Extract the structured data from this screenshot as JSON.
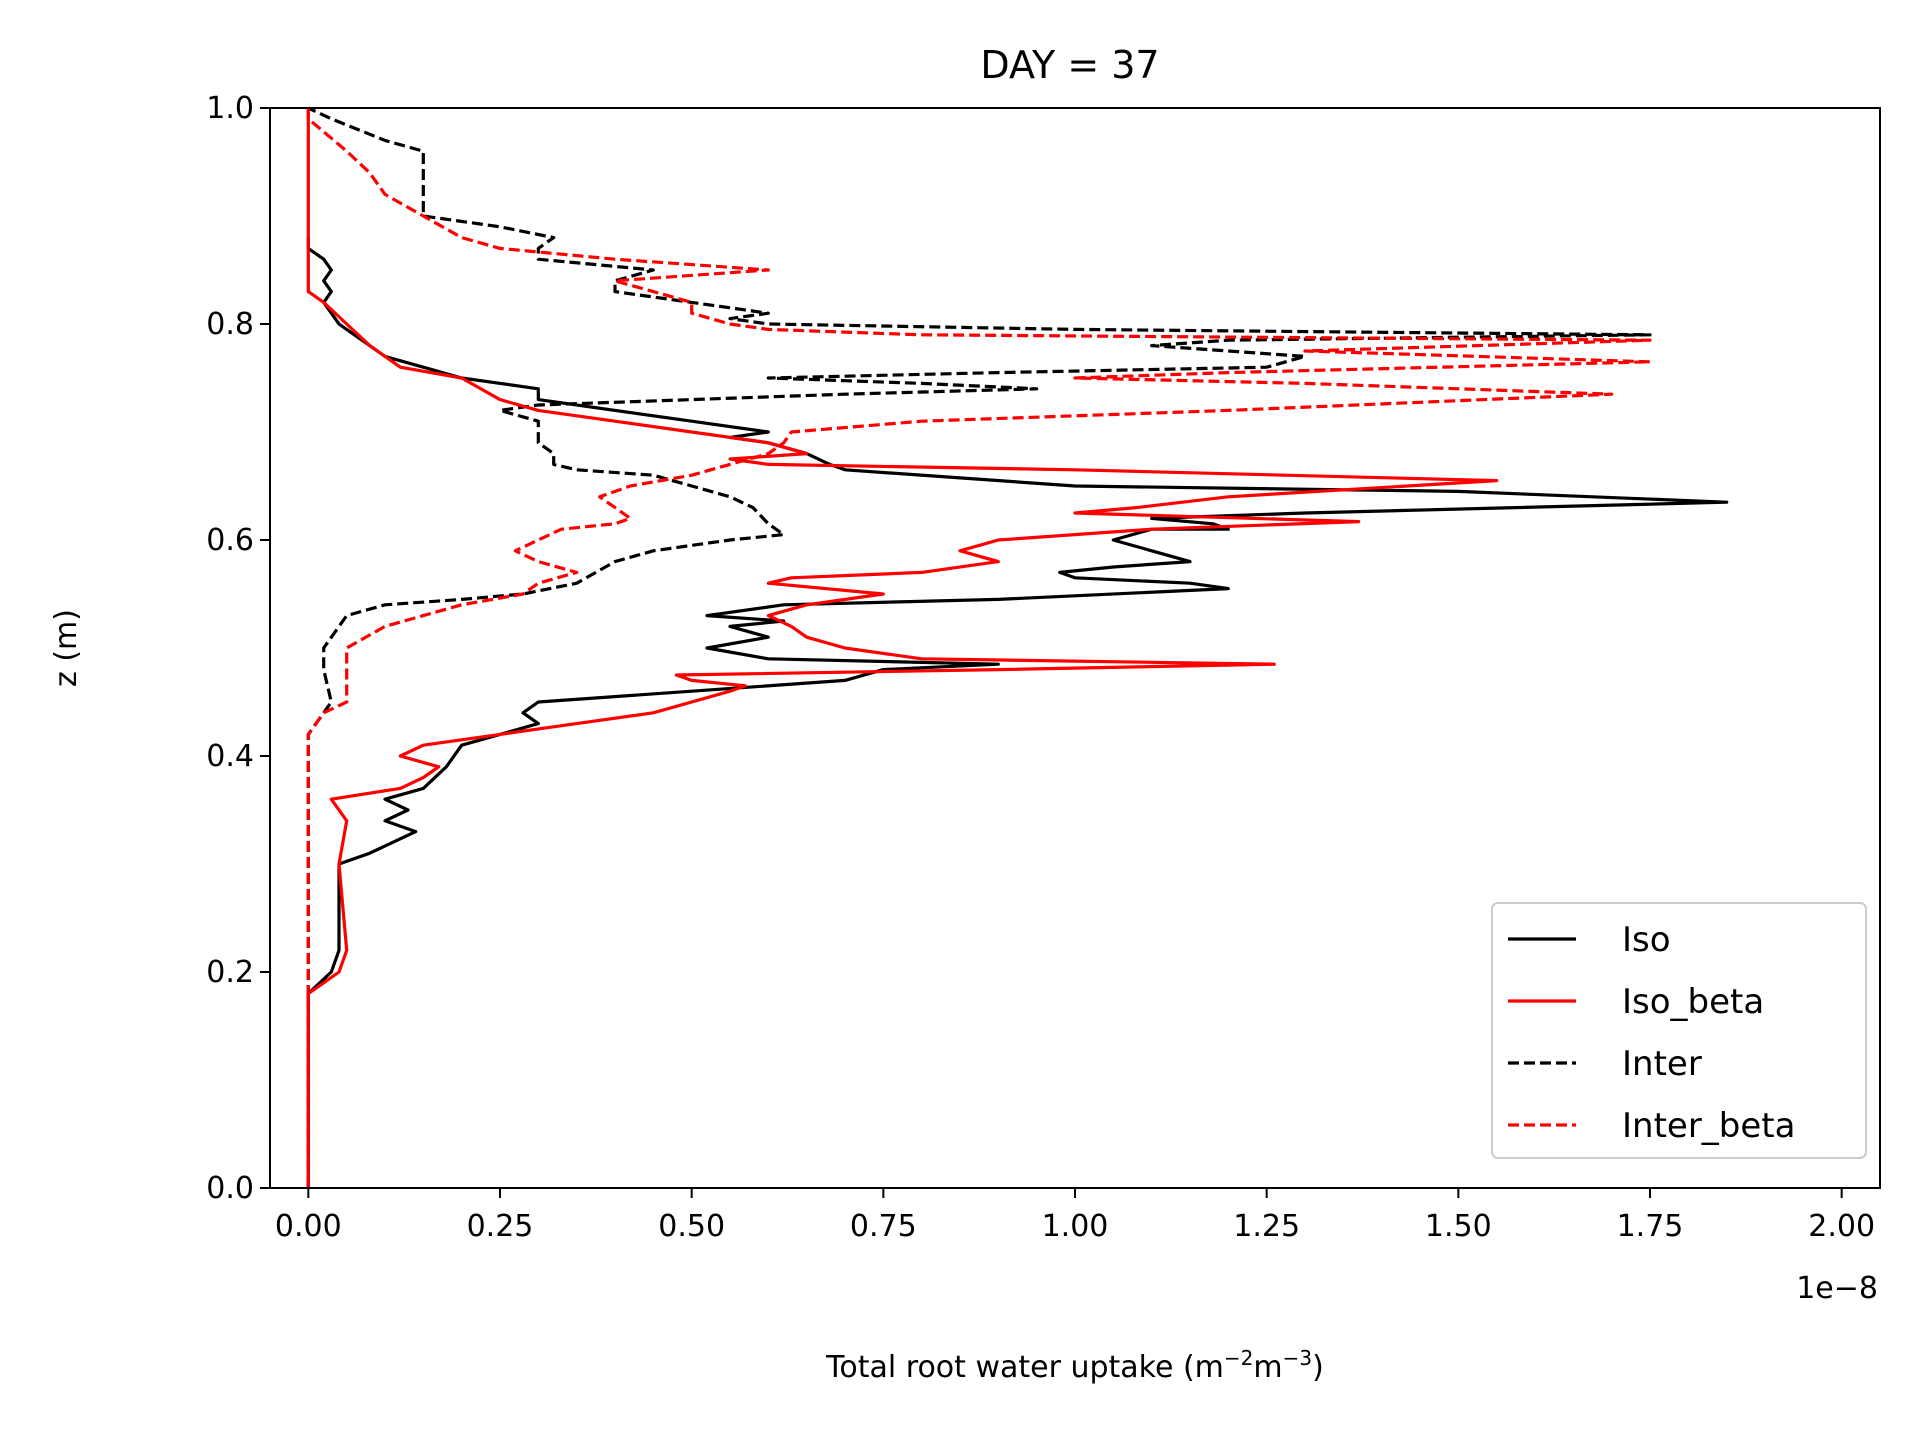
{
  "chart_data": {
    "type": "line",
    "title": "DAY = 37",
    "xlabel": "Total root water uptake (m",
    "xlabel_sup1": "−2",
    "xlabel_mid": "m",
    "xlabel_sup2": "−3",
    "xlabel_end": ")",
    "ylabel": "z (m)",
    "x_offset_text": "1e−8",
    "xlim": [
      -0.05,
      2.05
    ],
    "ylim": [
      0,
      1.0
    ],
    "xticks": [
      0.0,
      0.25,
      0.5,
      0.75,
      1.0,
      1.25,
      1.5,
      1.75,
      2.0
    ],
    "xtick_labels": [
      "0.00",
      "0.25",
      "0.50",
      "0.75",
      "1.00",
      "1.25",
      "1.50",
      "1.75",
      "2.00"
    ],
    "yticks": [
      0.0,
      0.2,
      0.4,
      0.6,
      0.8,
      1.0
    ],
    "ytick_labels": [
      "0.0",
      "0.2",
      "0.4",
      "0.6",
      "0.8",
      "1.0"
    ],
    "legend_position": "lower-right",
    "grid": false,
    "series": [
      {
        "name": "Iso",
        "color": "#000000",
        "dash": "solid",
        "points": [
          [
            0,
            0.0
          ],
          [
            0,
            0.18
          ],
          [
            0.03,
            0.2
          ],
          [
            0.04,
            0.22
          ],
          [
            0.04,
            0.3
          ],
          [
            0.08,
            0.31
          ],
          [
            0.14,
            0.33
          ],
          [
            0.1,
            0.34
          ],
          [
            0.13,
            0.35
          ],
          [
            0.1,
            0.36
          ],
          [
            0.15,
            0.37
          ],
          [
            0.18,
            0.39
          ],
          [
            0.2,
            0.41
          ],
          [
            0.25,
            0.42
          ],
          [
            0.3,
            0.43
          ],
          [
            0.28,
            0.44
          ],
          [
            0.3,
            0.45
          ],
          [
            0.5,
            0.46
          ],
          [
            0.7,
            0.47
          ],
          [
            0.75,
            0.48
          ],
          [
            0.9,
            0.485
          ],
          [
            0.6,
            0.49
          ],
          [
            0.52,
            0.5
          ],
          [
            0.6,
            0.51
          ],
          [
            0.55,
            0.52
          ],
          [
            0.62,
            0.525
          ],
          [
            0.52,
            0.53
          ],
          [
            0.62,
            0.54
          ],
          [
            0.9,
            0.545
          ],
          [
            1.2,
            0.555
          ],
          [
            1.15,
            0.56
          ],
          [
            1.0,
            0.565
          ],
          [
            0.98,
            0.57
          ],
          [
            1.05,
            0.575
          ],
          [
            1.15,
            0.58
          ],
          [
            1.1,
            0.59
          ],
          [
            1.05,
            0.6
          ],
          [
            1.1,
            0.61
          ],
          [
            1.2,
            0.61
          ],
          [
            1.18,
            0.615
          ],
          [
            1.1,
            0.62
          ],
          [
            1.3,
            0.625
          ],
          [
            1.85,
            0.635
          ],
          [
            1.5,
            0.645
          ],
          [
            1.0,
            0.65
          ],
          [
            0.7,
            0.665
          ],
          [
            0.68,
            0.67
          ],
          [
            0.65,
            0.68
          ],
          [
            0.6,
            0.69
          ],
          [
            0.55,
            0.695
          ],
          [
            0.6,
            0.7
          ],
          [
            0.5,
            0.71
          ],
          [
            0.3,
            0.73
          ],
          [
            0.3,
            0.74
          ],
          [
            0.2,
            0.75
          ],
          [
            0.15,
            0.76
          ],
          [
            0.1,
            0.77
          ],
          [
            0.08,
            0.78
          ],
          [
            0.06,
            0.79
          ],
          [
            0.04,
            0.8
          ],
          [
            0.02,
            0.82
          ],
          [
            0.03,
            0.83
          ],
          [
            0.02,
            0.84
          ],
          [
            0.03,
            0.85
          ],
          [
            0.02,
            0.86
          ],
          [
            0.0,
            0.87
          ],
          [
            0,
            0.88
          ]
        ]
      },
      {
        "name": "Iso_beta",
        "color": "#ff0000",
        "dash": "solid",
        "points": [
          [
            0,
            0.0
          ],
          [
            0,
            0.18
          ],
          [
            0.02,
            0.19
          ],
          [
            0.04,
            0.2
          ],
          [
            0.05,
            0.22
          ],
          [
            0.04,
            0.3
          ],
          [
            0.05,
            0.34
          ],
          [
            0.04,
            0.35
          ],
          [
            0.03,
            0.36
          ],
          [
            0.12,
            0.37
          ],
          [
            0.15,
            0.38
          ],
          [
            0.17,
            0.39
          ],
          [
            0.12,
            0.4
          ],
          [
            0.15,
            0.41
          ],
          [
            0.25,
            0.42
          ],
          [
            0.35,
            0.43
          ],
          [
            0.45,
            0.44
          ],
          [
            0.5,
            0.45
          ],
          [
            0.55,
            0.46
          ],
          [
            0.57,
            0.465
          ],
          [
            0.5,
            0.47
          ],
          [
            0.48,
            0.475
          ],
          [
            0.9,
            0.48
          ],
          [
            1.26,
            0.485
          ],
          [
            0.8,
            0.49
          ],
          [
            0.7,
            0.5
          ],
          [
            0.65,
            0.51
          ],
          [
            0.63,
            0.52
          ],
          [
            0.6,
            0.53
          ],
          [
            0.65,
            0.54
          ],
          [
            0.75,
            0.55
          ],
          [
            0.6,
            0.56
          ],
          [
            0.63,
            0.565
          ],
          [
            0.8,
            0.57
          ],
          [
            0.9,
            0.58
          ],
          [
            0.85,
            0.59
          ],
          [
            0.9,
            0.6
          ],
          [
            1.1,
            0.61
          ],
          [
            1.37,
            0.617
          ],
          [
            1.0,
            0.625
          ],
          [
            1.08,
            0.63
          ],
          [
            1.2,
            0.64
          ],
          [
            1.55,
            0.655
          ],
          [
            1.0,
            0.665
          ],
          [
            0.6,
            0.67
          ],
          [
            0.55,
            0.675
          ],
          [
            0.65,
            0.68
          ],
          [
            0.6,
            0.69
          ],
          [
            0.5,
            0.7
          ],
          [
            0.4,
            0.71
          ],
          [
            0.3,
            0.72
          ],
          [
            0.25,
            0.73
          ],
          [
            0.2,
            0.75
          ],
          [
            0.12,
            0.76
          ],
          [
            0.08,
            0.78
          ],
          [
            0.05,
            0.8
          ],
          [
            0.02,
            0.82
          ],
          [
            0.0,
            0.83
          ],
          [
            0,
            0.87
          ],
          [
            0,
            1.0
          ]
        ]
      },
      {
        "name": "Inter",
        "color": "#000000",
        "dash": "dashed",
        "points": [
          [
            0,
            0.0
          ],
          [
            0,
            0.42
          ],
          [
            0.02,
            0.44
          ],
          [
            0.03,
            0.45
          ],
          [
            0.02,
            0.48
          ],
          [
            0.02,
            0.5
          ],
          [
            0.05,
            0.53
          ],
          [
            0.1,
            0.54
          ],
          [
            0.2,
            0.545
          ],
          [
            0.28,
            0.55
          ],
          [
            0.35,
            0.56
          ],
          [
            0.4,
            0.58
          ],
          [
            0.45,
            0.59
          ],
          [
            0.55,
            0.6
          ],
          [
            0.62,
            0.605
          ],
          [
            0.6,
            0.615
          ],
          [
            0.58,
            0.63
          ],
          [
            0.55,
            0.64
          ],
          [
            0.5,
            0.65
          ],
          [
            0.45,
            0.66
          ],
          [
            0.35,
            0.665
          ],
          [
            0.32,
            0.67
          ],
          [
            0.32,
            0.68
          ],
          [
            0.3,
            0.69
          ],
          [
            0.3,
            0.71
          ],
          [
            0.25,
            0.72
          ],
          [
            0.3,
            0.725
          ],
          [
            0.5,
            0.73
          ],
          [
            0.7,
            0.735
          ],
          [
            0.95,
            0.74
          ],
          [
            0.8,
            0.745
          ],
          [
            0.6,
            0.75
          ],
          [
            0.9,
            0.755
          ],
          [
            1.25,
            0.76
          ],
          [
            1.3,
            0.77
          ],
          [
            1.1,
            0.78
          ],
          [
            1.2,
            0.785
          ],
          [
            1.75,
            0.79
          ],
          [
            1.0,
            0.795
          ],
          [
            0.6,
            0.8
          ],
          [
            0.55,
            0.805
          ],
          [
            0.6,
            0.81
          ],
          [
            0.5,
            0.82
          ],
          [
            0.4,
            0.83
          ],
          [
            0.4,
            0.84
          ],
          [
            0.45,
            0.85
          ],
          [
            0.3,
            0.86
          ],
          [
            0.3,
            0.87
          ],
          [
            0.32,
            0.88
          ],
          [
            0.25,
            0.89
          ],
          [
            0.15,
            0.9
          ],
          [
            0.15,
            0.93
          ],
          [
            0.15,
            0.96
          ],
          [
            0.1,
            0.97
          ],
          [
            0.03,
            0.99
          ],
          [
            0,
            1.0
          ]
        ]
      },
      {
        "name": "Inter_beta",
        "color": "#ff0000",
        "dash": "dashed",
        "points": [
          [
            0,
            0.0
          ],
          [
            0,
            0.42
          ],
          [
            0.02,
            0.44
          ],
          [
            0.05,
            0.45
          ],
          [
            0.05,
            0.48
          ],
          [
            0.05,
            0.5
          ],
          [
            0.1,
            0.52
          ],
          [
            0.15,
            0.53
          ],
          [
            0.2,
            0.54
          ],
          [
            0.28,
            0.55
          ],
          [
            0.3,
            0.56
          ],
          [
            0.35,
            0.57
          ],
          [
            0.3,
            0.58
          ],
          [
            0.27,
            0.59
          ],
          [
            0.3,
            0.6
          ],
          [
            0.33,
            0.61
          ],
          [
            0.4,
            0.615
          ],
          [
            0.42,
            0.62
          ],
          [
            0.4,
            0.63
          ],
          [
            0.38,
            0.64
          ],
          [
            0.42,
            0.65
          ],
          [
            0.5,
            0.66
          ],
          [
            0.55,
            0.67
          ],
          [
            0.6,
            0.68
          ],
          [
            0.62,
            0.69
          ],
          [
            0.63,
            0.7
          ],
          [
            0.8,
            0.71
          ],
          [
            1.2,
            0.72
          ],
          [
            1.7,
            0.735
          ],
          [
            1.3,
            0.745
          ],
          [
            1.0,
            0.75
          ],
          [
            1.2,
            0.755
          ],
          [
            1.75,
            0.765
          ],
          [
            1.3,
            0.775
          ],
          [
            1.75,
            0.785
          ],
          [
            0.8,
            0.79
          ],
          [
            0.6,
            0.795
          ],
          [
            0.55,
            0.8
          ],
          [
            0.5,
            0.81
          ],
          [
            0.5,
            0.82
          ],
          [
            0.45,
            0.83
          ],
          [
            0.4,
            0.84
          ],
          [
            0.6,
            0.85
          ],
          [
            0.4,
            0.86
          ],
          [
            0.25,
            0.87
          ],
          [
            0.2,
            0.88
          ],
          [
            0.15,
            0.9
          ],
          [
            0.1,
            0.92
          ],
          [
            0.08,
            0.94
          ],
          [
            0.05,
            0.96
          ],
          [
            0.0,
            0.99
          ],
          [
            0,
            1.0
          ]
        ]
      }
    ]
  }
}
